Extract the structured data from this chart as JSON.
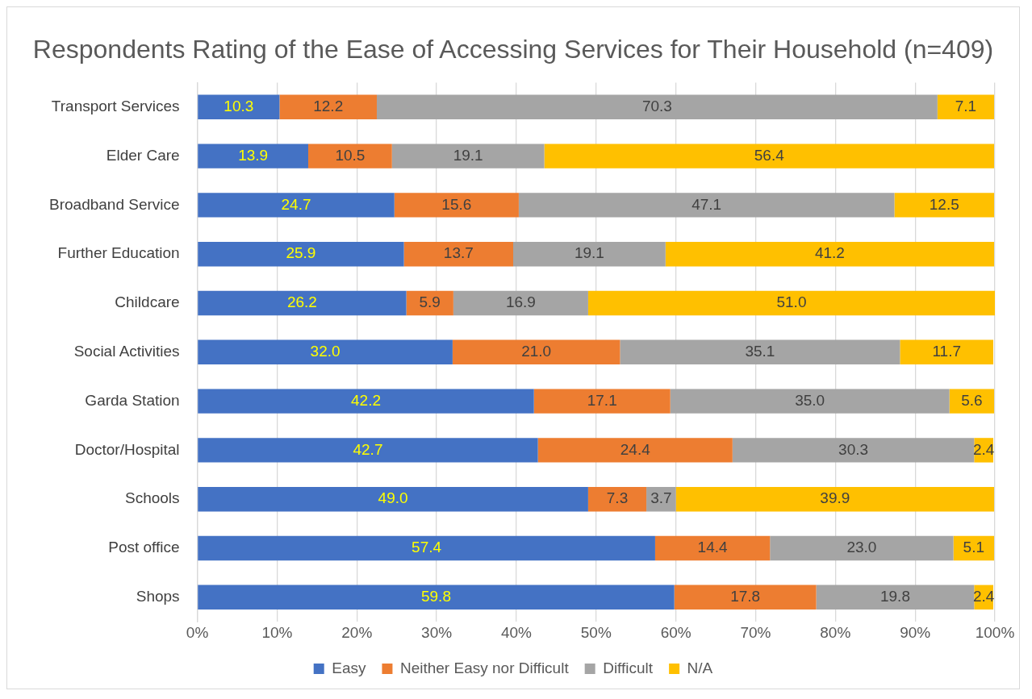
{
  "chart_data": {
    "type": "bar",
    "orientation": "horizontal",
    "stacked": true,
    "title": "Respondents Rating of the Ease of Accessing Services for Their Household (n=409)",
    "categories": [
      "Transport Services",
      "Elder Care",
      "Broadband Service",
      "Further Education",
      "Childcare",
      "Social Activities",
      "Garda Station",
      "Doctor/Hospital",
      "Schools",
      "Post office",
      "Shops"
    ],
    "series": [
      {
        "name": "Easy",
        "color": "#4472c4",
        "values": [
          10.3,
          13.9,
          24.7,
          25.9,
          26.2,
          32.0,
          42.2,
          42.7,
          49.0,
          57.4,
          59.8
        ],
        "value_labels": [
          "10.3",
          "13.9",
          "24.7",
          "25.9",
          "26.2",
          "32.0",
          "42.2",
          "42.7",
          "49.0",
          "57.4",
          "59.8"
        ]
      },
      {
        "name": "Neither Easy nor Difficult",
        "color": "#ed7d31",
        "values": [
          12.2,
          10.5,
          15.6,
          13.7,
          5.9,
          21.0,
          17.1,
          24.4,
          7.3,
          14.4,
          17.8
        ],
        "value_labels": [
          "12.2",
          "10.5",
          "15.6",
          "13.7",
          "5.9",
          "21.0",
          "17.1",
          "24.4",
          "7.3",
          "14.4",
          "17.8"
        ]
      },
      {
        "name": "Difficult",
        "color": "#a5a5a5",
        "values": [
          70.3,
          19.1,
          47.1,
          19.1,
          16.9,
          35.1,
          35.0,
          30.3,
          3.7,
          23.0,
          19.8
        ],
        "value_labels": [
          "70.3",
          "19.1",
          "47.1",
          "19.1",
          "16.9",
          "35.1",
          "35.0",
          "30.3",
          "3.7",
          "23.0",
          "19.8"
        ]
      },
      {
        "name": "N/A",
        "color": "#ffc000",
        "values": [
          7.1,
          56.4,
          12.5,
          41.2,
          51.0,
          11.7,
          5.6,
          2.4,
          39.9,
          5.1,
          2.4
        ],
        "value_labels": [
          "7.1",
          "56.4",
          "12.5",
          "41.2",
          "51.0",
          "11.7",
          "5.6",
          "2.4",
          "39.9",
          "5.1",
          "2.4"
        ]
      }
    ],
    "xlim": [
      0,
      100
    ],
    "xticks": [
      {
        "value": 0,
        "label": "0%"
      },
      {
        "value": 10,
        "label": "10%"
      },
      {
        "value": 20,
        "label": "20%"
      },
      {
        "value": 30,
        "label": "30%"
      },
      {
        "value": 40,
        "label": "40%"
      },
      {
        "value": 50,
        "label": "50%"
      },
      {
        "value": 60,
        "label": "60%"
      },
      {
        "value": 70,
        "label": "70%"
      },
      {
        "value": 80,
        "label": "80%"
      },
      {
        "value": 90,
        "label": "90%"
      },
      {
        "value": 100,
        "label": "100%"
      }
    ],
    "grid": "x",
    "legend": "bottom"
  }
}
